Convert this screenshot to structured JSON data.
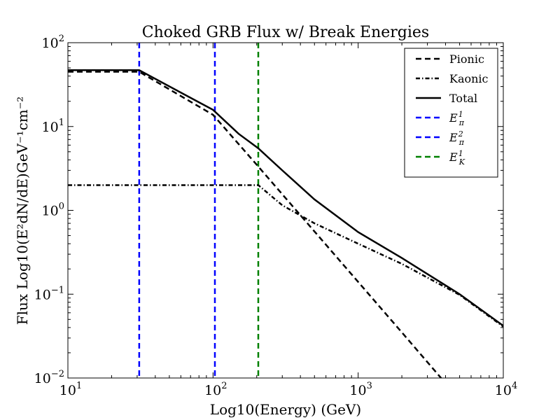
{
  "chart_data": {
    "type": "line",
    "title": "Choked GRB Flux w/ Break Energies",
    "xlabel": "Log10(Energy) (GeV)",
    "ylabel": "Flux Log10(E²dN/dE)GeV⁻¹cm⁻²",
    "xscale": "log",
    "yscale": "log",
    "xlim": [
      10,
      10000
    ],
    "ylim": [
      0.01,
      100
    ],
    "xticks": [
      {
        "value": 10,
        "base": "10",
        "exp": "1"
      },
      {
        "value": 100,
        "base": "10",
        "exp": "2"
      },
      {
        "value": 1000,
        "base": "10",
        "exp": "3"
      },
      {
        "value": 10000,
        "base": "10",
        "exp": "4"
      }
    ],
    "yticks": [
      {
        "value": 100,
        "base": "10",
        "exp": "2"
      },
      {
        "value": 10,
        "base": "10",
        "exp": "1"
      },
      {
        "value": 1,
        "base": "10",
        "exp": "0"
      },
      {
        "value": 0.1,
        "base": "10",
        "exp": "−1"
      },
      {
        "value": 0.01,
        "base": "10",
        "exp": "−2"
      }
    ],
    "legend_position": "top-right",
    "series": [
      {
        "name": "Pionic",
        "color": "#000000",
        "dash": "dashed",
        "x": [
          10,
          31,
          100,
          200,
          500,
          1000,
          2000,
          3800
        ],
        "y": [
          45,
          45,
          13.8,
          3.5,
          0.56,
          0.14,
          0.035,
          0.0096
        ]
      },
      {
        "name": "Kaonic",
        "color": "#000000",
        "dash": "dashdot",
        "x": [
          10,
          30,
          100,
          205,
          300,
          500,
          1000,
          2000,
          5000,
          10000
        ],
        "y": [
          2.0,
          2.0,
          2.0,
          2.0,
          1.15,
          0.7,
          0.4,
          0.23,
          0.098,
          0.041
        ]
      },
      {
        "name": "Total",
        "color": "#000000",
        "dash": "solid",
        "x": [
          10,
          31,
          100,
          150,
          205,
          300,
          500,
          1000,
          2000,
          5000,
          10000
        ],
        "y": [
          47,
          47,
          15.8,
          8.2,
          5.5,
          3.0,
          1.35,
          0.55,
          0.27,
          0.1,
          0.042
        ]
      }
    ],
    "vlines": [
      {
        "name": "E_pi_1",
        "label_base": "E",
        "label_sub": "π",
        "label_sup": "1",
        "x": 31,
        "color": "#0000ff"
      },
      {
        "name": "E_pi_2",
        "label_base": "E",
        "label_sub": "π",
        "label_sup": "2",
        "x": 103,
        "color": "#0000ff"
      },
      {
        "name": "E_K_1",
        "label_base": "E",
        "label_sub": "K",
        "label_sup": "1",
        "x": 205,
        "color": "#008000"
      }
    ]
  }
}
